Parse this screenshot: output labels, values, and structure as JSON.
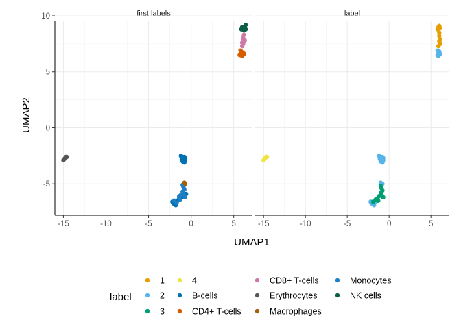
{
  "chart_data": {
    "type": "scatter",
    "xlabel": "UMAP1",
    "ylabel": "UMAP2",
    "xlim": [
      -16,
      7.2
    ],
    "ylim": [
      -7.8,
      10.0
    ],
    "x_ticks": [
      -15,
      -10,
      -5,
      0,
      5
    ],
    "y_ticks": [
      -5,
      0,
      5,
      10
    ],
    "grid": true,
    "legend_position": "bottom",
    "legend_title": "label",
    "legend": [
      {
        "label": "1",
        "color": "#E69F00"
      },
      {
        "label": "2",
        "color": "#56B4E9"
      },
      {
        "label": "3",
        "color": "#009E73"
      },
      {
        "label": "4",
        "color": "#F0E442"
      },
      {
        "label": "B-cells",
        "color": "#0072B2"
      },
      {
        "label": "CD4+ T-cells",
        "color": "#D55E00"
      },
      {
        "label": "CD8+ T-cells",
        "color": "#CC79A7"
      },
      {
        "label": "Erythrocytes",
        "color": "#555555"
      },
      {
        "label": "Macrophages",
        "color": "#A0620A"
      },
      {
        "label": "Monocytes",
        "color": "#1F7FC4"
      },
      {
        "label": "NK cells",
        "color": "#0B5E45"
      }
    ],
    "panels": [
      {
        "title": "first.labels",
        "series": [
          {
            "name": "Erythrocytes",
            "points": [
              [
                -15.0,
                -2.9
              ],
              [
                -14.9,
                -2.8
              ],
              [
                -14.8,
                -2.7
              ],
              [
                -14.7,
                -2.6
              ],
              [
                -14.6,
                -2.6
              ]
            ]
          },
          {
            "name": "B-cells",
            "points": [
              [
                -1.2,
                -2.5
              ],
              [
                -1.0,
                -2.6
              ],
              [
                -0.8,
                -2.6
              ],
              [
                -0.7,
                -2.7
              ],
              [
                -1.1,
                -2.8
              ],
              [
                -0.9,
                -2.9
              ],
              [
                -0.7,
                -2.9
              ],
              [
                -1.0,
                -3.0
              ],
              [
                -0.8,
                -3.1
              ],
              [
                -2.2,
                -6.6
              ],
              [
                -2.0,
                -6.8
              ],
              [
                -1.8,
                -6.9
              ],
              [
                -1.6,
                -6.5
              ],
              [
                -1.4,
                -6.3
              ],
              [
                -1.2,
                -6.1
              ],
              [
                -1.0,
                -6.2
              ],
              [
                -0.8,
                -6.0
              ],
              [
                -0.6,
                -5.9
              ]
            ]
          },
          {
            "name": "Monocytes",
            "points": [
              [
                -1.0,
                -5.1
              ],
              [
                -0.9,
                -5.3
              ],
              [
                -0.8,
                -5.5
              ],
              [
                -1.0,
                -5.7
              ],
              [
                -0.9,
                -5.9
              ],
              [
                -1.2,
                -6.0
              ],
              [
                -0.7,
                -6.2
              ],
              [
                -1.4,
                -6.1
              ],
              [
                -2.0,
                -6.5
              ],
              [
                -1.7,
                -6.7
              ],
              [
                -1.3,
                -6.4
              ]
            ]
          },
          {
            "name": "Macrophages",
            "points": [
              [
                -0.8,
                -4.9
              ],
              [
                -0.7,
                -5.0
              ]
            ]
          },
          {
            "name": "CD4+ T-cells",
            "points": [
              [
                5.7,
                6.5
              ],
              [
                5.8,
                6.6
              ],
              [
                6.0,
                6.5
              ],
              [
                6.2,
                6.6
              ],
              [
                5.9,
                6.8
              ],
              [
                6.1,
                6.7
              ],
              [
                5.8,
                6.9
              ],
              [
                6.0,
                6.4
              ]
            ]
          },
          {
            "name": "CD8+ T-cells",
            "points": [
              [
                6.0,
                7.3
              ],
              [
                6.1,
                7.5
              ],
              [
                6.2,
                7.7
              ],
              [
                6.3,
                7.8
              ],
              [
                6.1,
                8.0
              ],
              [
                6.2,
                8.3
              ],
              [
                6.0,
                7.6
              ]
            ]
          },
          {
            "name": "NK cells",
            "points": [
              [
                5.9,
                8.8
              ],
              [
                6.1,
                8.9
              ],
              [
                6.3,
                9.0
              ],
              [
                6.4,
                9.2
              ],
              [
                6.2,
                8.7
              ],
              [
                6.0,
                9.0
              ],
              [
                6.4,
                8.8
              ]
            ]
          }
        ]
      },
      {
        "title": "label",
        "series": [
          {
            "name": "4",
            "points": [
              [
                -15.0,
                -2.9
              ],
              [
                -14.9,
                -2.8
              ],
              [
                -14.8,
                -2.7
              ],
              [
                -14.7,
                -2.6
              ],
              [
                -14.6,
                -2.6
              ]
            ]
          },
          {
            "name": "2",
            "points": [
              [
                -1.2,
                -2.5
              ],
              [
                -1.0,
                -2.6
              ],
              [
                -0.8,
                -2.6
              ],
              [
                -0.7,
                -2.7
              ],
              [
                -1.1,
                -2.8
              ],
              [
                -0.9,
                -2.9
              ],
              [
                -0.7,
                -2.9
              ],
              [
                -1.0,
                -3.0
              ],
              [
                -0.8,
                -3.1
              ],
              [
                -1.0,
                -4.9
              ],
              [
                -0.8,
                -5.0
              ],
              [
                -2.2,
                -6.6
              ],
              [
                -2.0,
                -6.8
              ],
              [
                -1.8,
                -6.9
              ],
              [
                -1.6,
                -6.6
              ]
            ]
          },
          {
            "name": "3",
            "points": [
              [
                -1.0,
                -5.2
              ],
              [
                -0.9,
                -5.4
              ],
              [
                -0.8,
                -5.6
              ],
              [
                -1.0,
                -5.8
              ],
              [
                -0.9,
                -6.0
              ],
              [
                -1.2,
                -6.1
              ],
              [
                -0.7,
                -6.2
              ],
              [
                -1.4,
                -6.3
              ],
              [
                -1.6,
                -6.4
              ],
              [
                -1.3,
                -6.5
              ],
              [
                -1.9,
                -6.6
              ]
            ]
          },
          {
            "name": "1",
            "points": [
              [
                5.8,
                8.8
              ],
              [
                5.9,
                9.0
              ],
              [
                6.0,
                9.1
              ],
              [
                6.1,
                8.9
              ],
              [
                6.0,
                8.5
              ],
              [
                6.0,
                8.2
              ],
              [
                6.1,
                7.9
              ],
              [
                6.0,
                7.7
              ],
              [
                6.1,
                7.5
              ],
              [
                5.9,
                7.3
              ]
            ]
          },
          {
            "name": "2",
            "points": [
              [
                5.8,
                6.5
              ],
              [
                5.9,
                6.6
              ],
              [
                6.0,
                6.7
              ],
              [
                5.8,
                6.9
              ],
              [
                6.1,
                6.6
              ],
              [
                5.9,
                6.4
              ],
              [
                6.0,
                6.8
              ]
            ]
          }
        ]
      }
    ]
  }
}
